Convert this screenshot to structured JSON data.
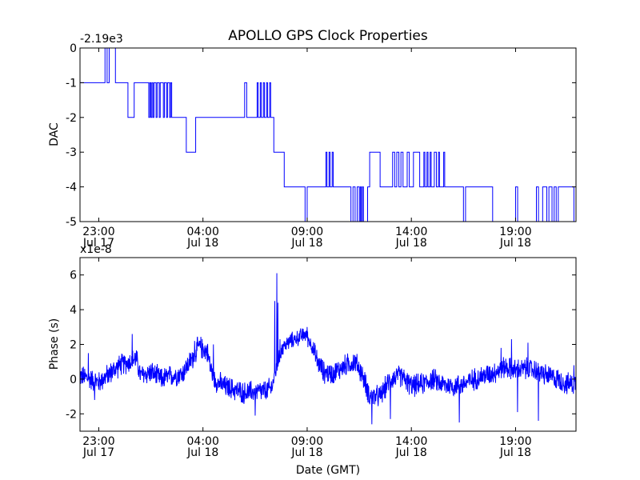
{
  "chart_data": [
    {
      "type": "line",
      "title": "APOLLO GPS Clock Properties",
      "offset_label": "-2.19e3",
      "ylabel": "DAC",
      "xlabel": "",
      "xlim": [
        22.1,
        45.9
      ],
      "ylim": [
        -5,
        0
      ],
      "yticks": [
        "0",
        "-1",
        "-2",
        "-3",
        "-4",
        "-5"
      ],
      "xticks": [
        {
          "hour": 23,
          "time": "23:00",
          "date": "Jul 17"
        },
        {
          "hour": 28,
          "time": "04:00",
          "date": "Jul 18"
        },
        {
          "hour": 33,
          "time": "09:00",
          "date": "Jul 18"
        },
        {
          "hour": 38,
          "time": "14:00",
          "date": "Jul 18"
        },
        {
          "hour": 43,
          "time": "19:00",
          "date": "Jul 18"
        }
      ],
      "color": "#0000ff",
      "series": [
        {
          "name": "DAC",
          "steps": [
            [
              22.1,
              -1
            ],
            [
              23.3,
              0
            ],
            [
              23.4,
              -1
            ],
            [
              23.5,
              0
            ],
            [
              23.8,
              -1
            ],
            [
              24.4,
              -2
            ],
            [
              24.7,
              -1
            ],
            [
              25.4,
              -2
            ],
            [
              25.45,
              -1
            ],
            [
              25.5,
              -2
            ],
            [
              25.55,
              -1
            ],
            [
              25.6,
              -2
            ],
            [
              25.65,
              -1
            ],
            [
              25.75,
              -2
            ],
            [
              25.8,
              -1
            ],
            [
              25.9,
              -2
            ],
            [
              25.95,
              -1
            ],
            [
              26.1,
              -2
            ],
            [
              26.15,
              -1
            ],
            [
              26.25,
              -2
            ],
            [
              26.3,
              -1
            ],
            [
              26.4,
              -2
            ],
            [
              26.45,
              -1
            ],
            [
              26.5,
              -2
            ],
            [
              27.2,
              -3
            ],
            [
              27.65,
              -2
            ],
            [
              30.0,
              -1
            ],
            [
              30.1,
              -2
            ],
            [
              30.6,
              -1
            ],
            [
              30.65,
              -2
            ],
            [
              30.75,
              -1
            ],
            [
              30.8,
              -2
            ],
            [
              30.9,
              -1
            ],
            [
              30.95,
              -2
            ],
            [
              31.05,
              -1
            ],
            [
              31.1,
              -2
            ],
            [
              31.2,
              -1
            ],
            [
              31.25,
              -2
            ],
            [
              31.4,
              -3
            ],
            [
              31.9,
              -4
            ],
            [
              32.9,
              -5
            ],
            [
              33.0,
              -4
            ],
            [
              33.9,
              -3
            ],
            [
              33.95,
              -4
            ],
            [
              34.05,
              -3
            ],
            [
              34.1,
              -4
            ],
            [
              34.2,
              -3
            ],
            [
              34.25,
              -4
            ],
            [
              34.4,
              -4
            ],
            [
              35.1,
              -5
            ],
            [
              35.2,
              -4
            ],
            [
              35.3,
              -5
            ],
            [
              35.4,
              -4
            ],
            [
              35.5,
              -5
            ],
            [
              35.55,
              -4
            ],
            [
              35.6,
              -5
            ],
            [
              35.65,
              -4
            ],
            [
              35.7,
              -5
            ],
            [
              35.9,
              -4
            ],
            [
              36.0,
              -3
            ],
            [
              36.5,
              -4
            ],
            [
              37.1,
              -3
            ],
            [
              37.2,
              -4
            ],
            [
              37.3,
              -3
            ],
            [
              37.4,
              -4
            ],
            [
              37.5,
              -3
            ],
            [
              37.6,
              -4
            ],
            [
              37.8,
              -3
            ],
            [
              37.9,
              -4
            ],
            [
              38.1,
              -3
            ],
            [
              38.4,
              -4
            ],
            [
              38.6,
              -3
            ],
            [
              38.65,
              -4
            ],
            [
              38.75,
              -3
            ],
            [
              38.8,
              -4
            ],
            [
              38.9,
              -3
            ],
            [
              38.95,
              -4
            ],
            [
              39.1,
              -3
            ],
            [
              39.2,
              -4
            ],
            [
              39.3,
              -3
            ],
            [
              39.35,
              -4
            ],
            [
              39.55,
              -3
            ],
            [
              39.6,
              -4
            ],
            [
              40.5,
              -5
            ],
            [
              40.6,
              -4
            ],
            [
              41.9,
              -5
            ],
            [
              43.0,
              -5
            ],
            [
              43.0,
              -4
            ],
            [
              43.1,
              -5
            ],
            [
              44.0,
              -4
            ],
            [
              44.1,
              -5
            ],
            [
              44.3,
              -4
            ],
            [
              44.5,
              -5
            ],
            [
              44.6,
              -4
            ],
            [
              44.75,
              -5
            ],
            [
              44.85,
              -4
            ],
            [
              44.95,
              -5
            ],
            [
              45.05,
              -4
            ],
            [
              45.8,
              -5
            ]
          ]
        }
      ]
    },
    {
      "type": "line",
      "title": "",
      "offset_label": "x1e-8",
      "ylabel": "Phase (s)",
      "xlabel": "Date (GMT)",
      "xlim": [
        22.1,
        45.9
      ],
      "ylim": [
        -3,
        7
      ],
      "yticks": [
        "6",
        "4",
        "2",
        "0",
        "-2"
      ],
      "xticks": [
        {
          "hour": 23,
          "time": "23:00",
          "date": "Jul 17"
        },
        {
          "hour": 28,
          "time": "04:00",
          "date": "Jul 18"
        },
        {
          "hour": 33,
          "time": "09:00",
          "date": "Jul 18"
        },
        {
          "hour": 38,
          "time": "14:00",
          "date": "Jul 18"
        },
        {
          "hour": 43,
          "time": "19:00",
          "date": "Jul 18"
        }
      ],
      "color": "#0000ff",
      "series": [
        {
          "name": "Phase",
          "points": [
            [
              22.1,
              0.2
            ],
            [
              22.6,
              0.0
            ],
            [
              23.0,
              -0.2
            ],
            [
              23.5,
              0.3
            ],
            [
              24.0,
              0.8
            ],
            [
              24.5,
              1.0
            ],
            [
              24.8,
              1.2
            ],
            [
              25.0,
              0.2
            ],
            [
              25.5,
              0.4
            ],
            [
              26.0,
              0.0
            ],
            [
              26.5,
              0.2
            ],
            [
              27.0,
              0.3
            ],
            [
              27.5,
              1.2
            ],
            [
              27.8,
              1.9
            ],
            [
              28.2,
              1.6
            ],
            [
              28.5,
              0.0
            ],
            [
              29.0,
              -0.4
            ],
            [
              29.5,
              -0.6
            ],
            [
              30.0,
              -0.8
            ],
            [
              30.5,
              -0.7
            ],
            [
              31.0,
              -0.7
            ],
            [
              31.3,
              -0.5
            ],
            [
              31.5,
              0.5
            ],
            [
              31.8,
              1.8
            ],
            [
              32.2,
              2.2
            ],
            [
              32.6,
              2.4
            ],
            [
              32.9,
              2.6
            ],
            [
              33.2,
              2.0
            ],
            [
              33.5,
              1.0
            ],
            [
              33.8,
              0.4
            ],
            [
              34.2,
              0.3
            ],
            [
              34.6,
              0.6
            ],
            [
              35.0,
              0.9
            ],
            [
              35.3,
              1.0
            ],
            [
              35.6,
              0.4
            ],
            [
              36.0,
              -1.0
            ],
            [
              36.5,
              -1.0
            ],
            [
              37.0,
              0.0
            ],
            [
              37.5,
              0.2
            ],
            [
              38.0,
              -0.4
            ],
            [
              38.5,
              -0.3
            ],
            [
              39.0,
              0.0
            ],
            [
              39.5,
              -0.3
            ],
            [
              40.0,
              -0.4
            ],
            [
              40.5,
              -0.3
            ],
            [
              41.0,
              0.0
            ],
            [
              41.5,
              0.2
            ],
            [
              42.0,
              0.4
            ],
            [
              42.5,
              0.7
            ],
            [
              43.0,
              0.5
            ],
            [
              43.5,
              0.6
            ],
            [
              44.0,
              0.5
            ],
            [
              44.5,
              0.2
            ],
            [
              45.0,
              0.0
            ],
            [
              45.5,
              -0.3
            ],
            [
              45.9,
              -0.2
            ]
          ],
          "spikes": [
            [
              31.55,
              6.1
            ],
            [
              31.45,
              4.5
            ],
            [
              31.6,
              4.4
            ],
            [
              31.7,
              2.3
            ],
            [
              24.6,
              2.6
            ],
            [
              27.6,
              2.2
            ],
            [
              28.5,
              2.0
            ],
            [
              33.0,
              3.0
            ],
            [
              30.5,
              -2.1
            ],
            [
              36.1,
              -2.6
            ],
            [
              40.3,
              -2.5
            ],
            [
              42.8,
              2.3
            ],
            [
              43.6,
              2.1
            ],
            [
              44.1,
              -2.4
            ],
            [
              43.1,
              -1.9
            ],
            [
              37.0,
              -2.3
            ],
            [
              45.8,
              0.8
            ],
            [
              22.5,
              1.5
            ],
            [
              22.8,
              -1.2
            ],
            [
              42.3,
              1.8
            ]
          ]
        }
      ]
    }
  ]
}
